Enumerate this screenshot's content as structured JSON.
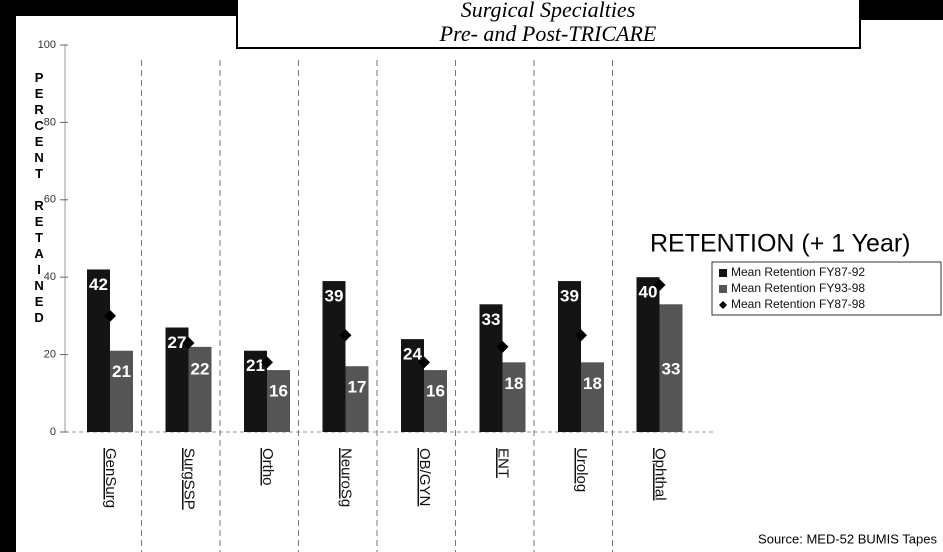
{
  "chart_data": {
    "type": "bar",
    "title": "Surgical Specialties",
    "subtitle": "Pre- and Post-TRICARE",
    "y_axis_label": "PERCENT RETAINED",
    "legend_title": "RETENTION (+ 1 Year)",
    "source": "Source: MED-52 BUMIS Tapes",
    "categories": [
      "GenSurg",
      "SurgSSP",
      "Ortho",
      "NeuroSg",
      "OB/GYN",
      "ENT",
      "Urolog",
      "Ophthal"
    ],
    "series": [
      {
        "name": "Mean Retention FY87-92",
        "color": "#141414",
        "values": [
          42,
          27,
          21,
          39,
          24,
          33,
          39,
          40
        ]
      },
      {
        "name": "Mean Retention FY93-98",
        "color": "#555555",
        "values": [
          21,
          22,
          16,
          17,
          16,
          18,
          18,
          33
        ]
      },
      {
        "name": "Mean Retention FY87-98",
        "color": "#000000",
        "marker": "diamond",
        "values": [
          30,
          23,
          18,
          25,
          18,
          22,
          25,
          38
        ]
      }
    ],
    "ylim": [
      0,
      100
    ],
    "yticks": [
      0,
      20,
      40,
      60,
      80,
      100
    ],
    "legend": "right"
  }
}
